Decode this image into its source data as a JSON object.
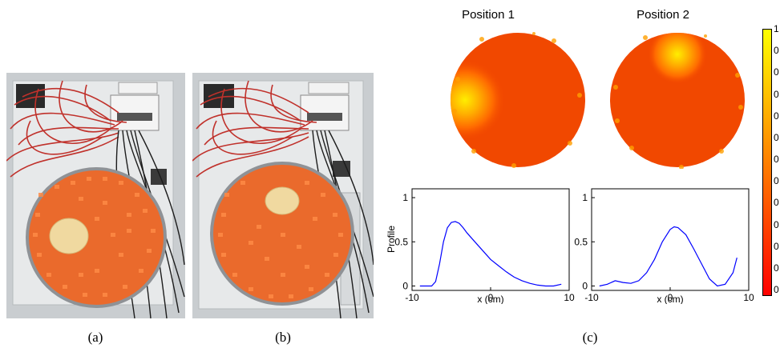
{
  "captions": {
    "a": "(a)",
    "b": "(b)",
    "c": "(c)"
  },
  "photos": {
    "a": {
      "subject": "phantom-photo",
      "inclusion": "left"
    },
    "b": {
      "subject": "phantom-photo",
      "inclusion": "top"
    }
  },
  "maps": {
    "position1_title": "Position 1",
    "position2_title": "Position 2"
  },
  "colorbar": {
    "labels": [
      "1",
      "0",
      "0",
      "0",
      "0",
      "0",
      "0",
      "0",
      "0",
      "0",
      "0",
      "0",
      "0"
    ],
    "colors": [
      "#ffff00",
      "#ff0000"
    ]
  },
  "chart_data": [
    {
      "type": "line",
      "title": "",
      "xlabel": "x (cm)",
      "ylabel": "Profile",
      "xlim": [
        -10,
        10
      ],
      "ylim": [
        -0.05,
        1.1
      ],
      "xticks": [
        "-10",
        "0",
        "10"
      ],
      "yticks": [
        "0",
        "0.5",
        "1"
      ],
      "series": [
        {
          "color": "#0000ff",
          "x": [
            -9,
            -7.5,
            -7,
            -6.5,
            -6,
            -5.5,
            -5,
            -4.5,
            -4,
            -3.5,
            -3,
            -2,
            -1,
            0,
            1,
            2,
            3,
            4,
            5,
            6,
            7,
            8,
            9
          ],
          "y": [
            0,
            0,
            0.05,
            0.25,
            0.5,
            0.66,
            0.72,
            0.73,
            0.71,
            0.66,
            0.6,
            0.5,
            0.4,
            0.3,
            0.23,
            0.16,
            0.1,
            0.06,
            0.03,
            0.01,
            0,
            0,
            0.02
          ]
        }
      ]
    },
    {
      "type": "line",
      "title": "",
      "xlabel": "x (cm)",
      "ylabel": "",
      "xlim": [
        -10,
        10
      ],
      "ylim": [
        -0.05,
        1.1
      ],
      "xticks": [
        "-10",
        "0",
        "10"
      ],
      "yticks": [
        "0",
        "0.5",
        "1"
      ],
      "series": [
        {
          "color": "#0000ff",
          "x": [
            -9,
            -8,
            -7,
            -6,
            -5,
            -4,
            -3,
            -2,
            -1,
            0,
            0.5,
            1,
            2,
            3,
            4,
            5,
            6,
            7,
            8,
            8.5
          ],
          "y": [
            0,
            0.02,
            0.06,
            0.04,
            0.03,
            0.06,
            0.15,
            0.3,
            0.5,
            0.64,
            0.67,
            0.66,
            0.58,
            0.42,
            0.25,
            0.08,
            0,
            0.02,
            0.15,
            0.32
          ]
        }
      ]
    }
  ]
}
